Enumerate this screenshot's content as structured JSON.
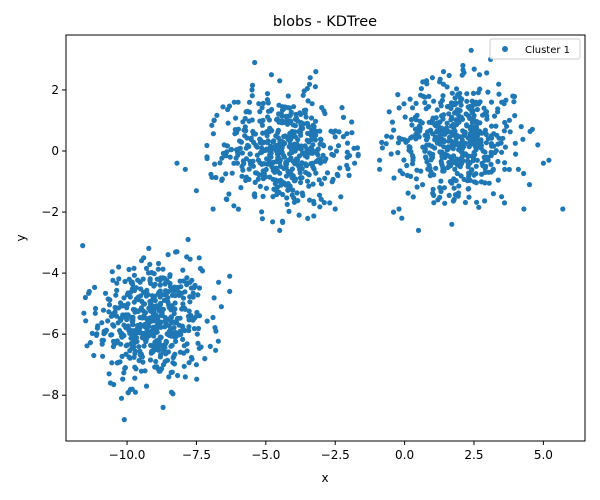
{
  "chart_data": {
    "type": "scatter",
    "title": "blobs - KDTree",
    "xlabel": "x",
    "ylabel": "y",
    "xlim": [
      -12.2,
      6.5
    ],
    "ylim": [
      -9.5,
      3.8
    ],
    "xticks": [
      -10.0,
      -7.5,
      -5.0,
      -2.5,
      0.0,
      2.5,
      5.0
    ],
    "xtick_labels": [
      "−10.0",
      "−7.5",
      "−5.0",
      "−2.5",
      "0.0",
      "2.5",
      "5.0"
    ],
    "yticks": [
      -8,
      -6,
      -4,
      -2,
      0,
      2
    ],
    "ytick_labels": [
      "−8",
      "−6",
      "−4",
      "−2",
      "0",
      "2"
    ],
    "grid": false,
    "legend_position": "top-right",
    "series": [
      {
        "name": "Cluster 1",
        "color": "#1f77b4",
        "marker": "circle",
        "clusters": [
          {
            "center": [
              -9.1,
              -5.6
            ],
            "std": [
              0.95,
              0.95
            ],
            "count": 500
          },
          {
            "center": [
              -4.4,
              0.0
            ],
            "std": [
              1.05,
              0.9
            ],
            "count": 500
          },
          {
            "center": [
              1.9,
              0.4
            ],
            "std": [
              1.05,
              0.9
            ],
            "count": 500
          }
        ],
        "points": [
          [
            -11.6,
            -3.1
          ],
          [
            -11.5,
            -4.8
          ],
          [
            -11.2,
            -6.7
          ],
          [
            -10.9,
            -6.2
          ],
          [
            -10.6,
            -7.6
          ],
          [
            -10.2,
            -8.1
          ],
          [
            -10.1,
            -8.8
          ],
          [
            -9.7,
            -7.9
          ],
          [
            -9.3,
            -7.7
          ],
          [
            -8.7,
            -8.4
          ],
          [
            -8.4,
            -7.9
          ],
          [
            -7.9,
            -7.4
          ],
          [
            -7.5,
            -7.0
          ],
          [
            -7.2,
            -6.8
          ],
          [
            -7.0,
            -6.4
          ],
          [
            -6.8,
            -5.9
          ],
          [
            -6.6,
            -5.1
          ],
          [
            -6.3,
            -4.6
          ],
          [
            -6.3,
            -4.1
          ],
          [
            -6.7,
            -4.3
          ],
          [
            -7.4,
            -3.5
          ],
          [
            -7.8,
            -2.9
          ],
          [
            -8.2,
            -3.3
          ],
          [
            -9.4,
            -3.5
          ],
          [
            -10.3,
            -3.8
          ],
          [
            -8.2,
            -0.4
          ],
          [
            -7.9,
            -0.6
          ],
          [
            -7.5,
            -1.3
          ],
          [
            -6.9,
            -1.9
          ],
          [
            -6.5,
            0.2
          ],
          [
            -6.1,
            0.7
          ],
          [
            -6.0,
            1.6
          ],
          [
            -5.9,
            -1.2
          ],
          [
            -5.4,
            2.9
          ],
          [
            -5.5,
            2.0
          ],
          [
            -4.8,
            2.5
          ],
          [
            -4.5,
            2.3
          ],
          [
            -4.5,
            -2.6
          ],
          [
            -4.4,
            -2.3
          ],
          [
            -3.8,
            -2.1
          ],
          [
            -3.4,
            2.4
          ],
          [
            -3.2,
            2.6
          ],
          [
            -2.7,
            -1.7
          ],
          [
            -2.5,
            -1.9
          ],
          [
            -2.2,
            1.1
          ],
          [
            -1.9,
            0.6
          ],
          [
            -1.7,
            0.1
          ],
          [
            -1.8,
            -0.4
          ],
          [
            -2.0,
            -0.8
          ],
          [
            -2.3,
            -1.5
          ],
          [
            -0.9,
            -0.3
          ],
          [
            -0.9,
            -0.6
          ],
          [
            -0.8,
            0.1
          ],
          [
            -0.4,
            -2.0
          ],
          [
            -0.2,
            -1.9
          ],
          [
            -0.1,
            -2.2
          ],
          [
            0.1,
            -0.8
          ],
          [
            0.2,
            1.7
          ],
          [
            0.3,
            -0.3
          ],
          [
            0.5,
            -2.6
          ],
          [
            0.8,
            2.2
          ],
          [
            1.0,
            2.4
          ],
          [
            1.2,
            -1.6
          ],
          [
            1.4,
            2.6
          ],
          [
            1.7,
            -2.4
          ],
          [
            2.1,
            2.8
          ],
          [
            2.4,
            3.3
          ],
          [
            2.7,
            2.5
          ],
          [
            2.9,
            -0.7
          ],
          [
            3.1,
            3.0
          ],
          [
            3.2,
            -1.4
          ],
          [
            3.5,
            1.6
          ],
          [
            3.6,
            -1.7
          ],
          [
            4.0,
            -0.1
          ],
          [
            4.1,
            -0.6
          ],
          [
            4.3,
            -1.9
          ],
          [
            4.5,
            -1.1
          ],
          [
            4.8,
            0.2
          ],
          [
            5.0,
            -0.4
          ],
          [
            5.2,
            -0.3
          ],
          [
            5.7,
            -1.9
          ],
          [
            4.2,
            0.8
          ],
          [
            3.9,
            1.8
          ]
        ]
      }
    ]
  }
}
